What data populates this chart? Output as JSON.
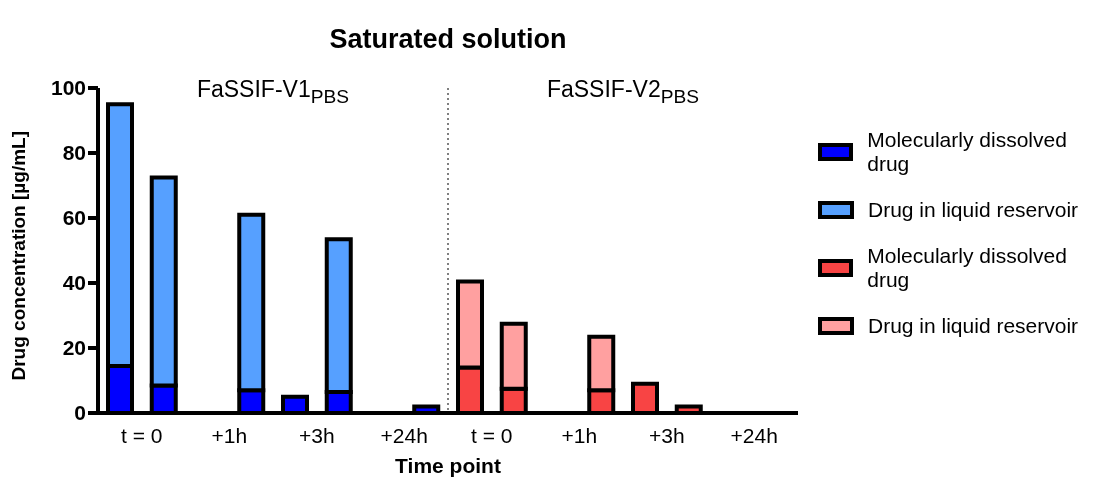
{
  "chart_data": {
    "type": "bar",
    "title": "Saturated solution",
    "xlabel": "Time point",
    "ylabel": "Drug concentration [µg/mL]",
    "annotations": [
      "FaSSIF-V1$_{PBS}$",
      "FaSSIF-V2$_{PBS}$"
    ],
    "categories": [
      "t = 0",
      null,
      "+1h",
      null,
      "+3h",
      null,
      "+24h",
      null,
      "t = 0",
      null,
      "+1h",
      null,
      "+3h",
      null,
      "+24h",
      null
    ],
    "stacked": true,
    "legend": "right",
    "ylim": [
      0,
      100
    ],
    "yticks": [
      0,
      20,
      40,
      60,
      80,
      100
    ],
    "series": [
      {
        "name": "Molecularly dissolved drug",
        "color": "#0000ff",
        "values": [
          14.5,
          8.5,
          null,
          7,
          5,
          6.5,
          null,
          2,
          null,
          null,
          null,
          null,
          null,
          null,
          null,
          null
        ]
      },
      {
        "name": "Drug in liquid reservoir",
        "color": "#56a0ff",
        "values": [
          80.5,
          64,
          null,
          54,
          null,
          47,
          null,
          null,
          null,
          null,
          null,
          null,
          null,
          null,
          null,
          null
        ]
      },
      {
        "name": "Molecularly dissolved drug",
        "color": "#f84444",
        "values": [
          null,
          null,
          null,
          null,
          null,
          null,
          null,
          null,
          14,
          7.5,
          null,
          7,
          9,
          2,
          null,
          null
        ]
      },
      {
        "name": "Drug in liquid reservoir",
        "color": "#ffa0a0",
        "values": [
          null,
          null,
          null,
          null,
          null,
          null,
          null,
          null,
          26.5,
          20,
          null,
          16.5,
          null,
          null,
          null,
          null
        ]
      }
    ]
  }
}
